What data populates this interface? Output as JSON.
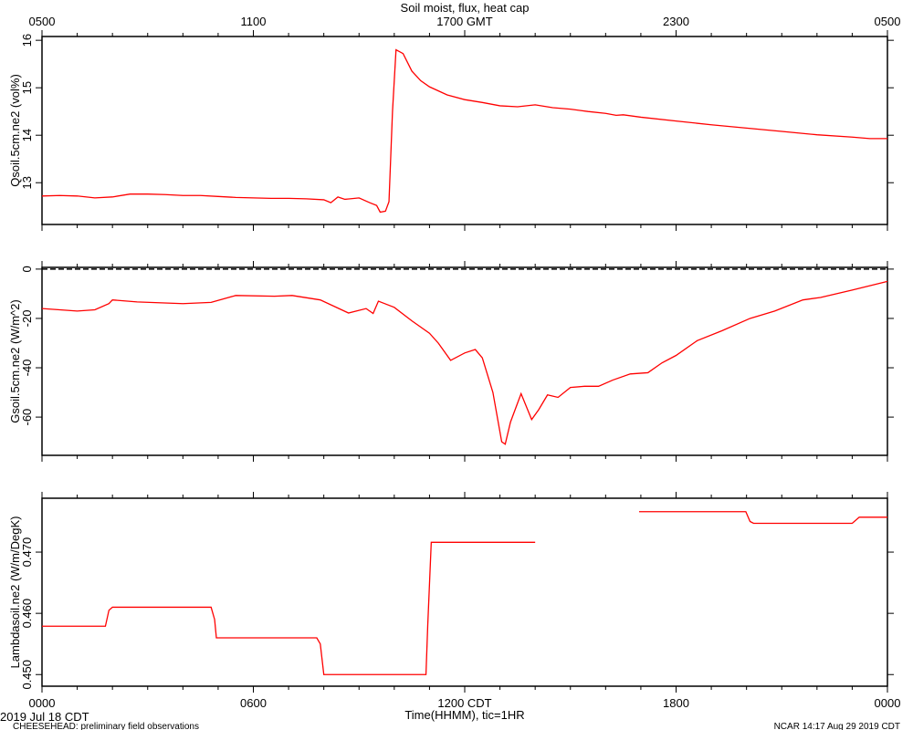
{
  "chart_data": [
    {
      "type": "line",
      "title": "Soil moist, flux, heat cap",
      "ylabel": "Qsoil.5cm.ne2 (vol%)",
      "xlim": [
        0,
        24
      ],
      "ylim": [
        12.12,
        16.08
      ],
      "yticks": [
        13,
        14,
        15,
        16
      ],
      "x2ticks": [
        {
          "value": 0,
          "label": "0500"
        },
        {
          "value": 6,
          "label": "1100"
        },
        {
          "value": 12,
          "label": "1700 GMT"
        },
        {
          "value": 18,
          "label": "2300"
        },
        {
          "value": 24,
          "label": "0500"
        }
      ],
      "x": [
        0,
        0.5,
        1,
        1.5,
        2,
        2.5,
        3,
        3.5,
        4,
        4.5,
        5,
        5.5,
        6,
        6.5,
        7,
        7.5,
        8,
        8.2,
        8.4,
        8.6,
        9,
        9.3,
        9.5,
        9.6,
        9.75,
        9.85,
        9.95,
        10.05,
        10.25,
        10.5,
        10.75,
        11,
        11.5,
        12,
        12.5,
        13,
        13.5,
        14,
        14.5,
        15,
        15.5,
        16,
        16.3,
        16.5,
        17,
        18,
        19,
        20,
        21,
        22,
        23,
        23.5,
        24
      ],
      "series": [
        {
          "color": "#ff0000",
          "values": [
            12.72,
            12.73,
            12.72,
            12.68,
            12.7,
            12.76,
            12.76,
            12.75,
            12.73,
            12.73,
            12.71,
            12.69,
            12.68,
            12.67,
            12.67,
            12.66,
            12.64,
            12.58,
            12.7,
            12.65,
            12.68,
            12.58,
            12.52,
            12.38,
            12.4,
            12.6,
            14.5,
            15.8,
            15.72,
            15.35,
            15.15,
            15.02,
            14.85,
            14.75,
            14.69,
            14.62,
            14.6,
            14.64,
            14.58,
            14.55,
            14.5,
            14.46,
            14.42,
            14.43,
            14.38,
            14.3,
            14.22,
            14.15,
            14.08,
            14.01,
            13.96,
            13.93,
            13.93
          ]
        }
      ]
    },
    {
      "type": "line",
      "ylabel": "Gsoil.5cm.ne2 (W/m^2)",
      "xlim": [
        0,
        24
      ],
      "ylim": [
        -75.5,
        0.7
      ],
      "yticks": [
        0,
        -20,
        -40,
        -60
      ],
      "hline": 0,
      "x": [
        0,
        1,
        1.5,
        1.9,
        2.0,
        2.7,
        4,
        4.8,
        5.5,
        6.6,
        7.1,
        7.9,
        8.7,
        9.2,
        9.4,
        9.55,
        10,
        10.5,
        11,
        11.25,
        11.6,
        12,
        12.3,
        12.5,
        12.8,
        13.05,
        13.15,
        13.3,
        13.6,
        13.9,
        14.1,
        14.35,
        14.65,
        15,
        15.4,
        15.8,
        16.2,
        16.7,
        17.2,
        17.6,
        18,
        18.6,
        19.3,
        20.1,
        20.8,
        21.6,
        22.1,
        23,
        24
      ],
      "series": [
        {
          "color": "#ff0000",
          "values": [
            -16,
            -17,
            -16.5,
            -14,
            -12.5,
            -13.3,
            -14,
            -13.5,
            -10.7,
            -11,
            -10.7,
            -12.5,
            -17.8,
            -16,
            -18,
            -13,
            -15.5,
            -21,
            -26,
            -30,
            -37,
            -34,
            -32.6,
            -36,
            -50,
            -70,
            -71,
            -62,
            -50.5,
            -61,
            -57,
            -51,
            -52,
            -48,
            -47.5,
            -47.5,
            -45,
            -42.5,
            -42,
            -38,
            -35,
            -29,
            -25,
            -20,
            -17,
            -12.5,
            -11.5,
            -8.5,
            -5
          ]
        }
      ]
    },
    {
      "type": "line",
      "ylabel": "Lambdasoil.ne2 (W/m/DegK)",
      "xlim": [
        0,
        24
      ],
      "ylim": [
        0.4481,
        0.4788
      ],
      "yticks": [
        {
          "value": 0.45,
          "label": "0.450"
        },
        {
          "value": 0.46,
          "label": "0.460"
        },
        {
          "value": 0.47,
          "label": "0.470"
        }
      ],
      "xticks": [
        {
          "value": 0,
          "label": "0000"
        },
        {
          "value": 6,
          "label": "0600"
        },
        {
          "value": 12,
          "label": "1200 CDT"
        },
        {
          "value": 18,
          "label": "1800"
        },
        {
          "value": 24,
          "label": "0000"
        }
      ],
      "xlabel": "Time(HHMM), tic=1HR",
      "date_label": "2019 Jul 18 CDT",
      "footer_left": "CHEESEHEAD: preliminary field observations",
      "footer_right": "NCAR 14:17 Aug 29 2019 CDT",
      "x": [
        0,
        1.8,
        1.9,
        2.0,
        4.8,
        4.9,
        4.95,
        7.8,
        7.9,
        8.0,
        10.9,
        10.95,
        11.05,
        14.0,
        15.5,
        16.95,
        19.98,
        20.1,
        20.2,
        23.0,
        23.2,
        24
      ],
      "series": [
        {
          "color": "#ff0000",
          "values": [
            0.4579,
            0.4579,
            0.4605,
            0.461,
            0.461,
            0.459,
            0.456,
            0.456,
            0.455,
            0.45,
            0.45,
            0.458,
            0.4716,
            0.4716,
            null,
            0.4766,
            0.4766,
            0.475,
            0.4747,
            0.4747,
            0.4757,
            0.4757
          ]
        }
      ]
    }
  ]
}
